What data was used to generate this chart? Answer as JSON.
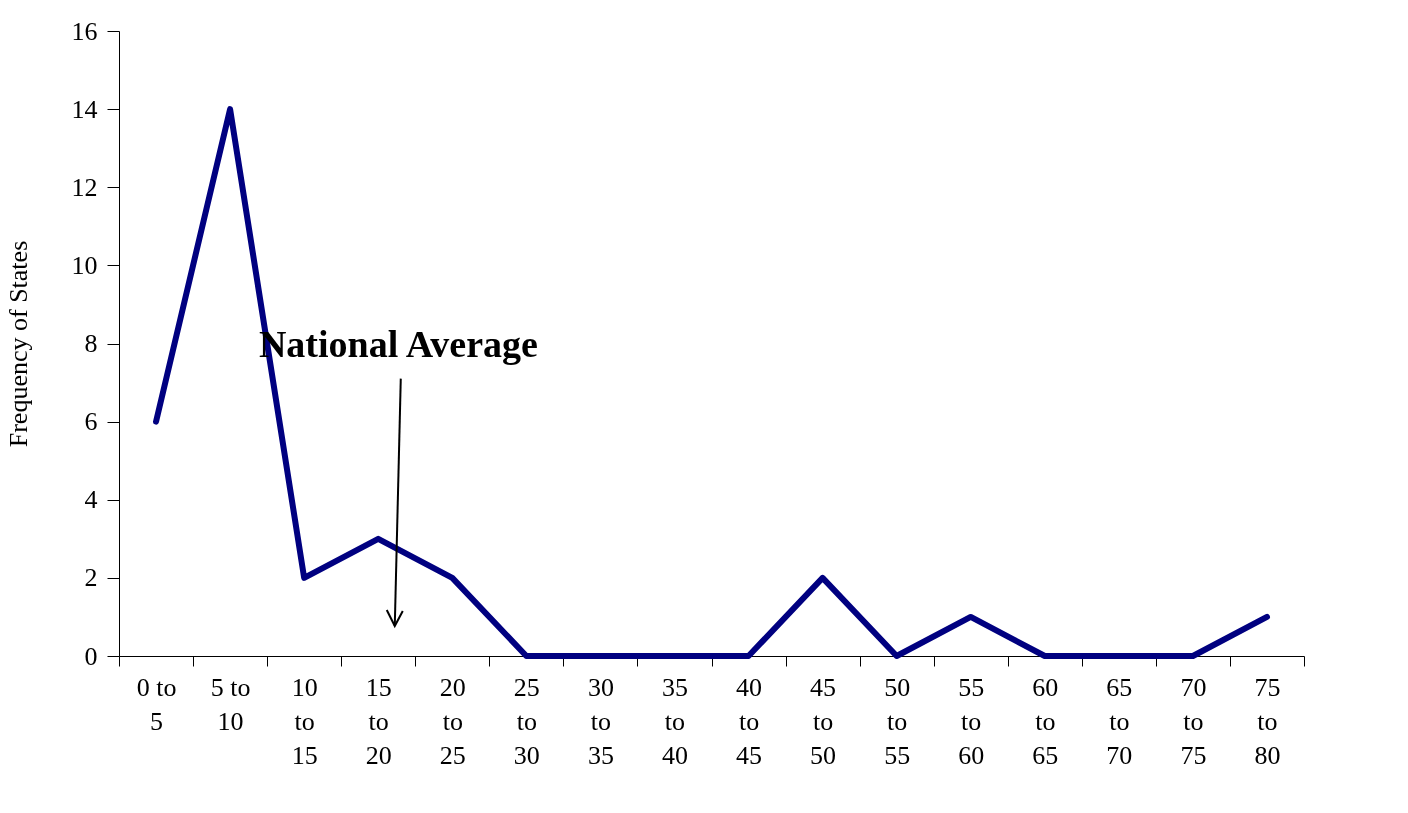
{
  "chart_data": {
    "type": "line",
    "ylabel": "Frequency of States",
    "categories": [
      "0 to 5",
      "5 to 10",
      "10 to 15",
      "15 to 20",
      "20 to 25",
      "25 to 30",
      "30 to 35",
      "35 to 40",
      "40 to 45",
      "45 to 50",
      "50 to 55",
      "55 to 60",
      "60 to 65",
      "65 to 70",
      "70 to 75",
      "75 to 80"
    ],
    "series": [
      {
        "color": "#000080",
        "values": [
          6,
          14,
          2,
          3,
          2,
          0,
          0,
          0,
          0,
          2,
          0,
          1,
          0,
          0,
          0,
          1
        ]
      }
    ],
    "ylim": [
      0,
      16
    ],
    "yticks": [
      0,
      2,
      4,
      6,
      8,
      10,
      12,
      14,
      16
    ],
    "grid": false,
    "legend": false,
    "marker": "none",
    "line_style": "solid",
    "annotations": [
      "National Average"
    ]
  }
}
